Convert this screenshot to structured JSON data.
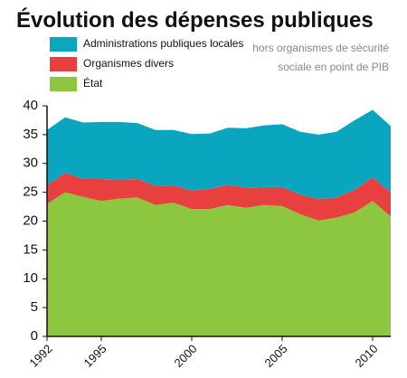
{
  "chart_data": {
    "type": "stacked_area",
    "title": "Évolution des dépenses publiques",
    "subtitle": [
      "hors organismes de sécurité",
      "sociale en point de PIB"
    ],
    "x": [
      1992,
      1993,
      1994,
      1995,
      1996,
      1997,
      1998,
      1999,
      2000,
      2001,
      2002,
      2003,
      2004,
      2005,
      2006,
      2007,
      2008,
      2009,
      2010,
      2011
    ],
    "series": [
      {
        "name": "État",
        "color": "#8dc63f",
        "values": [
          23.0,
          25.0,
          24.2,
          23.5,
          23.9,
          24.1,
          22.8,
          23.2,
          22.1,
          22.1,
          22.8,
          22.3,
          22.8,
          22.6,
          21.2,
          20.1,
          20.6,
          21.5,
          23.5,
          20.8
        ]
      },
      {
        "name": "Organismes divers",
        "color": "#e8403f",
        "values": [
          3.2,
          3.4,
          3.1,
          3.8,
          3.3,
          3.2,
          3.3,
          3.0,
          3.2,
          3.5,
          3.5,
          3.5,
          3.1,
          3.3,
          3.4,
          3.7,
          3.5,
          3.9,
          4.1,
          4.2
        ]
      },
      {
        "name": "Administrations publiques locales",
        "color": "#0aa5bf",
        "values": [
          9.6,
          9.6,
          9.8,
          9.9,
          10.0,
          9.7,
          9.7,
          9.6,
          9.8,
          9.6,
          9.9,
          10.3,
          10.7,
          10.9,
          10.9,
          11.2,
          11.4,
          12.1,
          11.7,
          11.5
        ]
      }
    ],
    "xlim": [
      1992,
      2011
    ],
    "xticks": [
      1992,
      1995,
      2000,
      2005,
      2010
    ],
    "ylim": [
      0,
      40
    ],
    "yticks": [
      0,
      5,
      10,
      15,
      20,
      25,
      30,
      35,
      40
    ]
  }
}
